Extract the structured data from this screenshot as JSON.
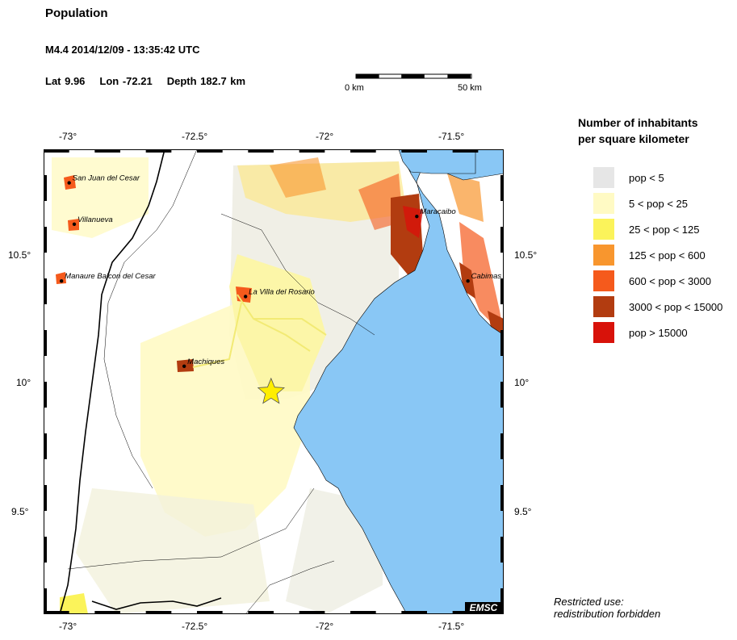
{
  "header": {
    "title": "Population",
    "event": "M4.4  2014/12/09 - 13:35:42 UTC",
    "lat": "Lat  9.96",
    "lon": "Lon -72.21",
    "depth": "Depth 182.7 km"
  },
  "scale_bar": {
    "start_label": "0 km",
    "end_label": "50 km"
  },
  "axes": {
    "lon_ticks": [
      "-73°",
      "-72.5°",
      "-72°",
      "-71.5°"
    ],
    "lat_ticks": [
      "10.5°",
      "10°",
      "9.5°"
    ],
    "lon_range": [
      -73.1,
      -71.3
    ],
    "lat_range": [
      9.1,
      10.9
    ]
  },
  "epicenter": {
    "lat": 9.96,
    "lon": -72.21,
    "marker": "star-icon",
    "color": "#ffee00"
  },
  "cities": [
    {
      "name": "San Juan del Cesar",
      "lat": 10.77,
      "lon": -73.0
    },
    {
      "name": "Villanueva",
      "lat": 10.61,
      "lon": -72.98
    },
    {
      "name": "Manaure Balcon del Cesar",
      "lat": 10.39,
      "lon": -73.03
    },
    {
      "name": "La Villa del Rosario",
      "lat": 10.33,
      "lon": -72.31
    },
    {
      "name": "Maracaibo",
      "lat": 10.64,
      "lon": -71.64
    },
    {
      "name": "Cabimas",
      "lat": 10.39,
      "lon": -71.44
    },
    {
      "name": "Machiques",
      "lat": 10.06,
      "lon": -72.55
    }
  ],
  "legend": {
    "title_line1": "Number of inhabitants",
    "title_line2": "per square kilometer",
    "items": [
      {
        "label": "pop < 5",
        "color": "#e6e6e6"
      },
      {
        "label": "5 < pop < 25",
        "color": "#fffac4"
      },
      {
        "label": "25 < pop < 125",
        "color": "#fbf35a"
      },
      {
        "label": "125 < pop < 600",
        "color": "#f8962e"
      },
      {
        "label": "600 < pop < 3000",
        "color": "#f55a1c"
      },
      {
        "label": "3000 < pop < 15000",
        "color": "#b23c10"
      },
      {
        "label": "pop > 15000",
        "color": "#d8120a"
      }
    ]
  },
  "footer": {
    "restricted_line1": "Restricted use:",
    "restricted_line2": "redistribution forbidden",
    "logo": "EMSC"
  },
  "colors": {
    "water": "#89c7f5",
    "land": "#ffffff"
  }
}
